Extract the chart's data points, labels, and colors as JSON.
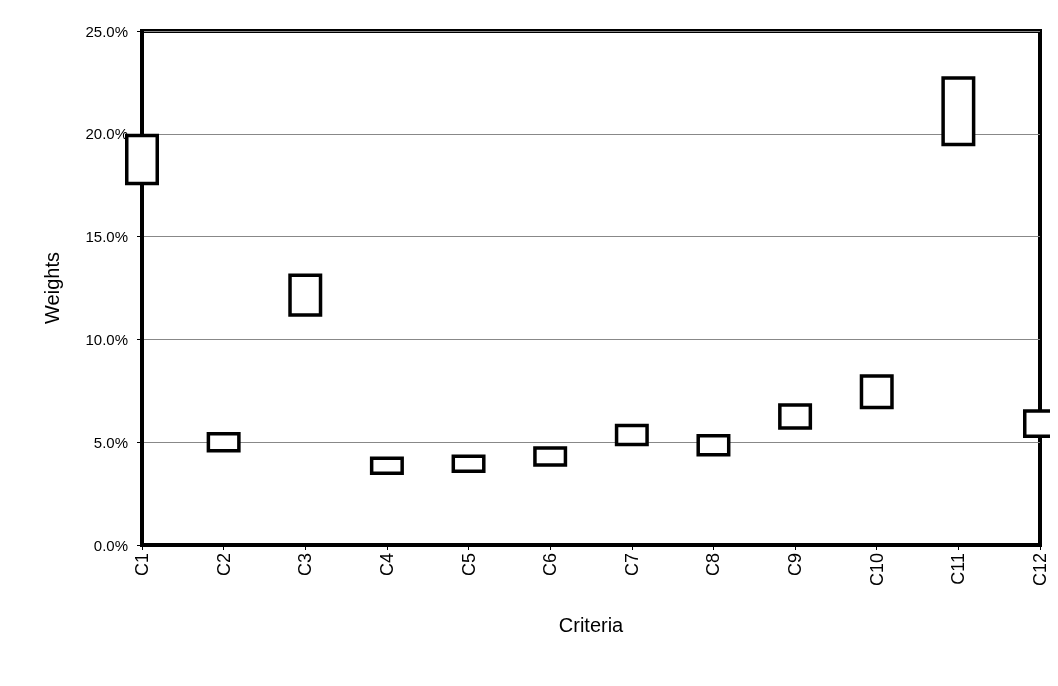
{
  "chart_data": {
    "type": "bar",
    "xlabel": "Criteria",
    "ylabel": "Weights",
    "categories": [
      "C1",
      "C2",
      "C3",
      "C4",
      "C5",
      "C6",
      "C7",
      "C8",
      "C9",
      "C10",
      "C11",
      "C12"
    ],
    "base": [
      17.5,
      4.5,
      11.1,
      3.4,
      3.5,
      3.8,
      4.8,
      4.3,
      5.6,
      6.6,
      19.4,
      5.2
    ],
    "values": [
      2.5,
      1.0,
      2.1,
      0.9,
      0.9,
      1.0,
      1.1,
      1.1,
      1.3,
      1.7,
      3.4,
      1.4
    ],
    "color": "#000000",
    "ylim": [
      0,
      25
    ],
    "yticks": [
      {
        "value": 0,
        "label": "0.0%"
      },
      {
        "value": 5,
        "label": "5.0%"
      },
      {
        "value": 10,
        "label": "10.0%"
      },
      {
        "value": 15,
        "label": "15.0%"
      },
      {
        "value": 20,
        "label": "20.0%"
      },
      {
        "value": 25,
        "label": "25.0%"
      }
    ],
    "grid": "y"
  }
}
